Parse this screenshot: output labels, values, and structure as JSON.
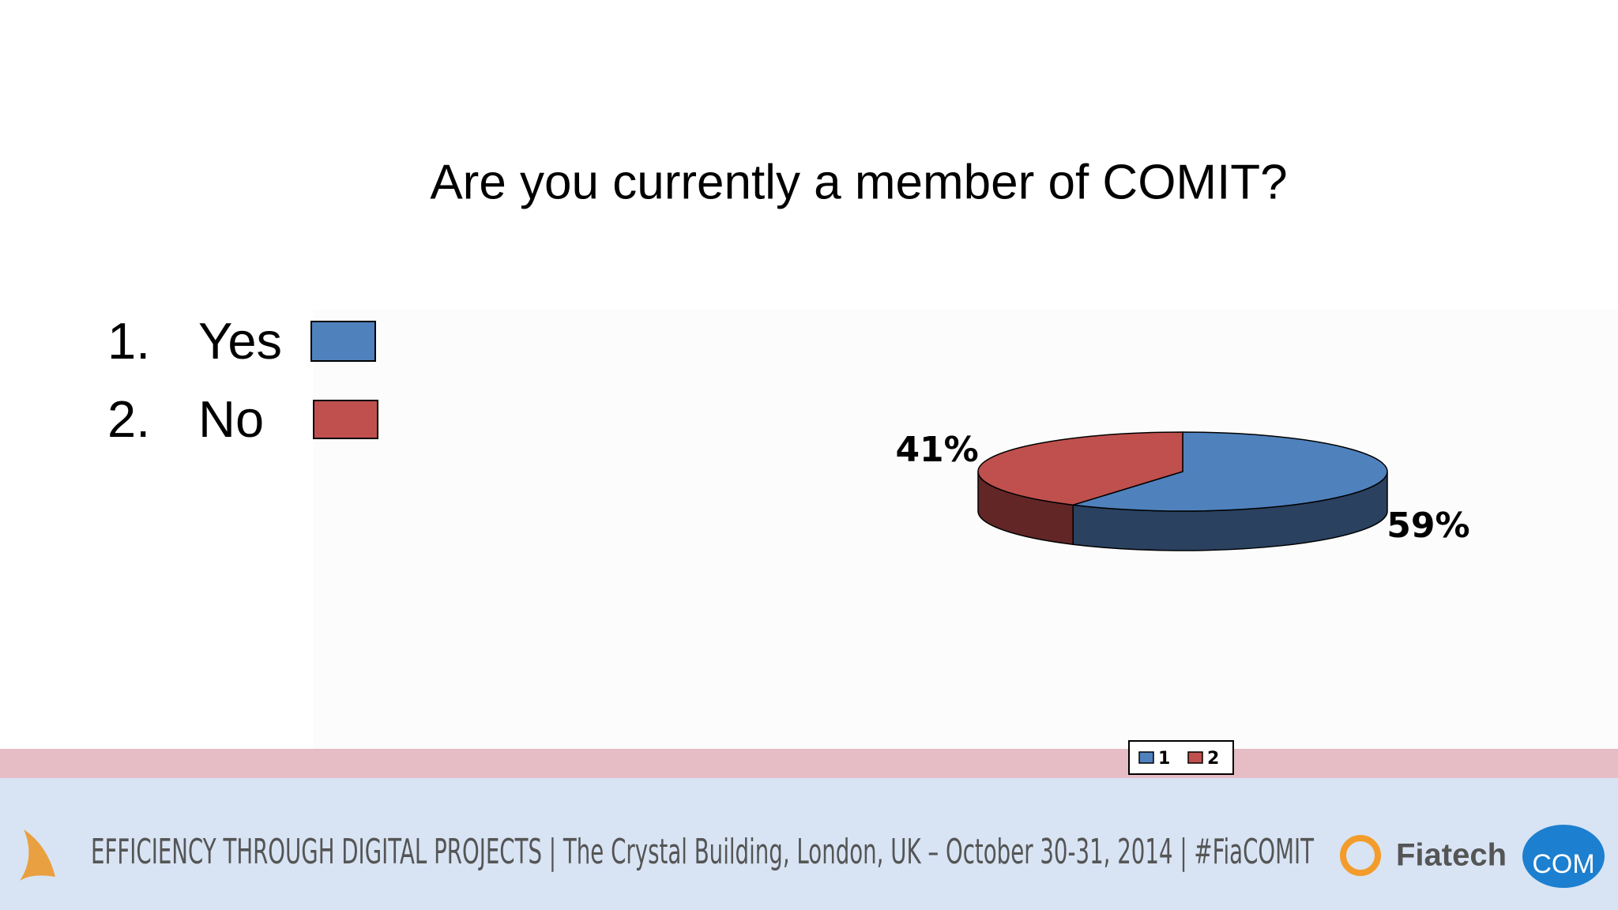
{
  "chart_data": {
    "type": "pie",
    "title": "Are you currently a member of COMIT?",
    "categories": [
      "1",
      "2"
    ],
    "values": [
      59,
      41
    ],
    "value_labels": [
      "59%",
      "41%"
    ],
    "colors": [
      "#4f81bd",
      "#c0504d"
    ],
    "side_colors": [
      "#2a4160",
      "#622626"
    ],
    "legend": "bottom"
  },
  "slide": {
    "options": [
      {
        "number": "1.",
        "label": "Yes"
      },
      {
        "number": "2.",
        "label": "No"
      }
    ],
    "footer": "EFFICIENCY THROUGH DIGITAL PROJECTS | The Crystal Building, London, UK – October 30-31, 2014 | #FiaCOMIT",
    "logos": [
      "Fiatech",
      "COM"
    ]
  }
}
